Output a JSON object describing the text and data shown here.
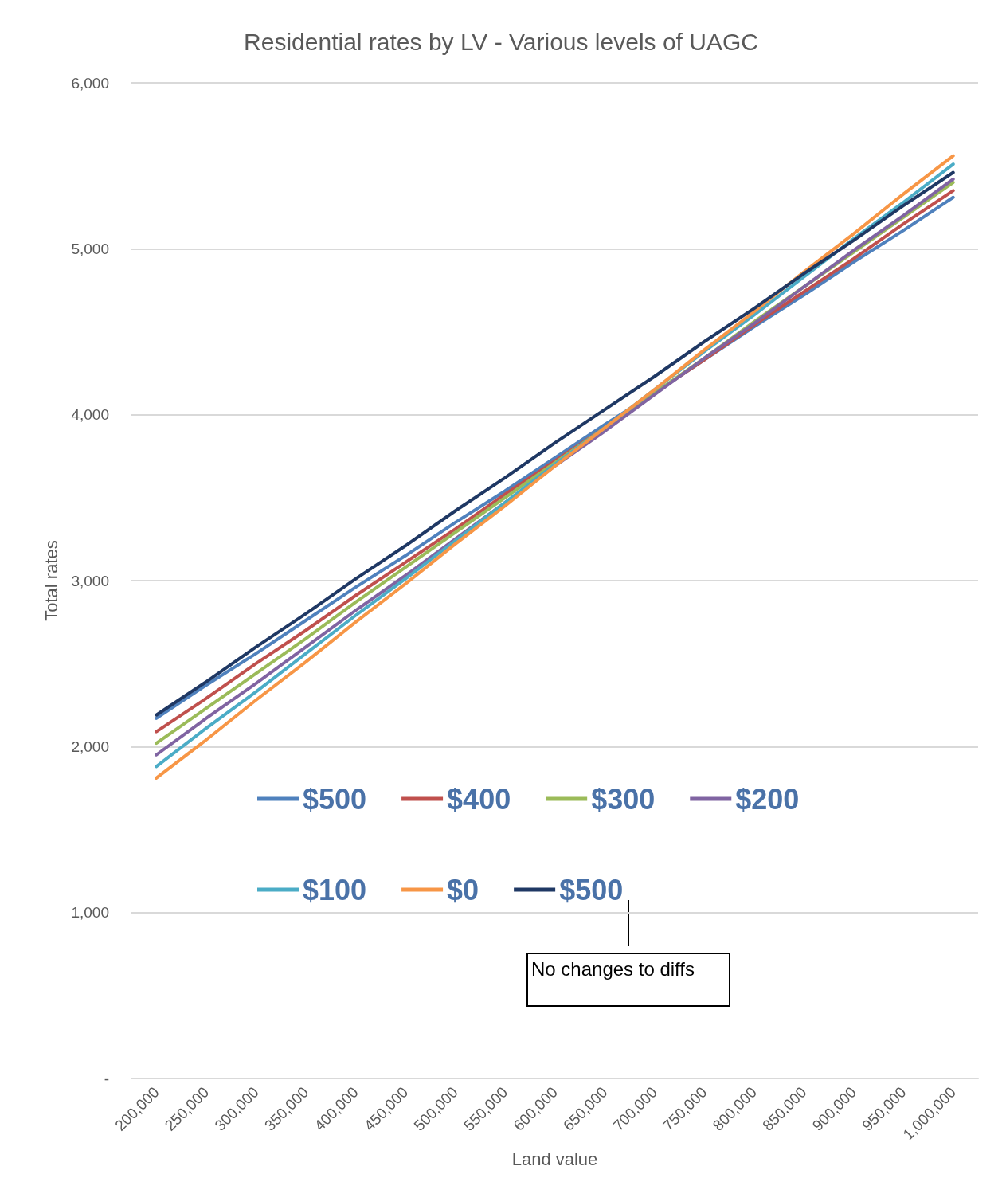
{
  "chart_data": {
    "type": "line",
    "title": "Residential rates by LV - Various levels of UAGC",
    "xlabel": "Land value",
    "ylabel": "Total rates",
    "categories": [
      "200,000",
      "250,000",
      "300,000",
      "350,000",
      "400,000",
      "450,000",
      "500,000",
      "550,000",
      "600,000",
      "650,000",
      "700,000",
      "750,000",
      "800,000",
      "850,000",
      "900,000",
      "950,000",
      "1,000,000"
    ],
    "series": [
      {
        "name": "$500",
        "color": "#4f81bd",
        "values": [
          2170,
          2370,
          2560,
          2760,
          2960,
          3150,
          3350,
          3540,
          3740,
          3940,
          4130,
          4330,
          4530,
          4720,
          4920,
          5110,
          5310
        ]
      },
      {
        "name": "$400",
        "color": "#c0504d",
        "values": [
          2090,
          2290,
          2500,
          2700,
          2910,
          3110,
          3310,
          3520,
          3720,
          3920,
          4130,
          4330,
          4540,
          4740,
          4940,
          5150,
          5350
        ]
      },
      {
        "name": "$300",
        "color": "#9bbb59",
        "values": [
          2020,
          2230,
          2440,
          2650,
          2870,
          3080,
          3290,
          3500,
          3710,
          3920,
          4130,
          4340,
          4560,
          4770,
          4980,
          5190,
          5400
        ]
      },
      {
        "name": "$200",
        "color": "#8064a2",
        "values": [
          1950,
          2170,
          2380,
          2600,
          2820,
          3030,
          3250,
          3470,
          3690,
          3900,
          4120,
          4340,
          4550,
          4770,
          4990,
          5200,
          5420
        ]
      },
      {
        "name": "$100",
        "color": "#4bacc6",
        "values": [
          1880,
          2110,
          2330,
          2560,
          2790,
          3010,
          3240,
          3470,
          3700,
          3920,
          4150,
          4380,
          4600,
          4830,
          5060,
          5280,
          5510
        ]
      },
      {
        "name": "$0",
        "color": "#f79646",
        "values": [
          1810,
          2040,
          2280,
          2510,
          2750,
          2980,
          3220,
          3450,
          3690,
          3920,
          4150,
          4390,
          4620,
          4860,
          5090,
          5330,
          5560
        ]
      },
      {
        "name": "$500",
        "color": "#1f3864",
        "values": [
          2190,
          2390,
          2600,
          2800,
          3010,
          3210,
          3420,
          3620,
          3830,
          4030,
          4230,
          4440,
          4640,
          4850,
          5050,
          5260,
          5460
        ]
      }
    ],
    "ylim": [
      0,
      6000
    ],
    "yticks": [
      {
        "value": 0,
        "label": "-"
      },
      {
        "value": 1000,
        "label": "1,000"
      },
      {
        "value": 2000,
        "label": "2,000"
      },
      {
        "value": 3000,
        "label": "3,000"
      },
      {
        "value": 4000,
        "label": "4,000"
      },
      {
        "value": 5000,
        "label": "5,000"
      },
      {
        "value": 6000,
        "label": "6,000"
      }
    ],
    "grid": "y",
    "legend": "bottom",
    "marker": "none",
    "line_style": "solid",
    "annotations": [
      "No changes to diffs"
    ]
  }
}
